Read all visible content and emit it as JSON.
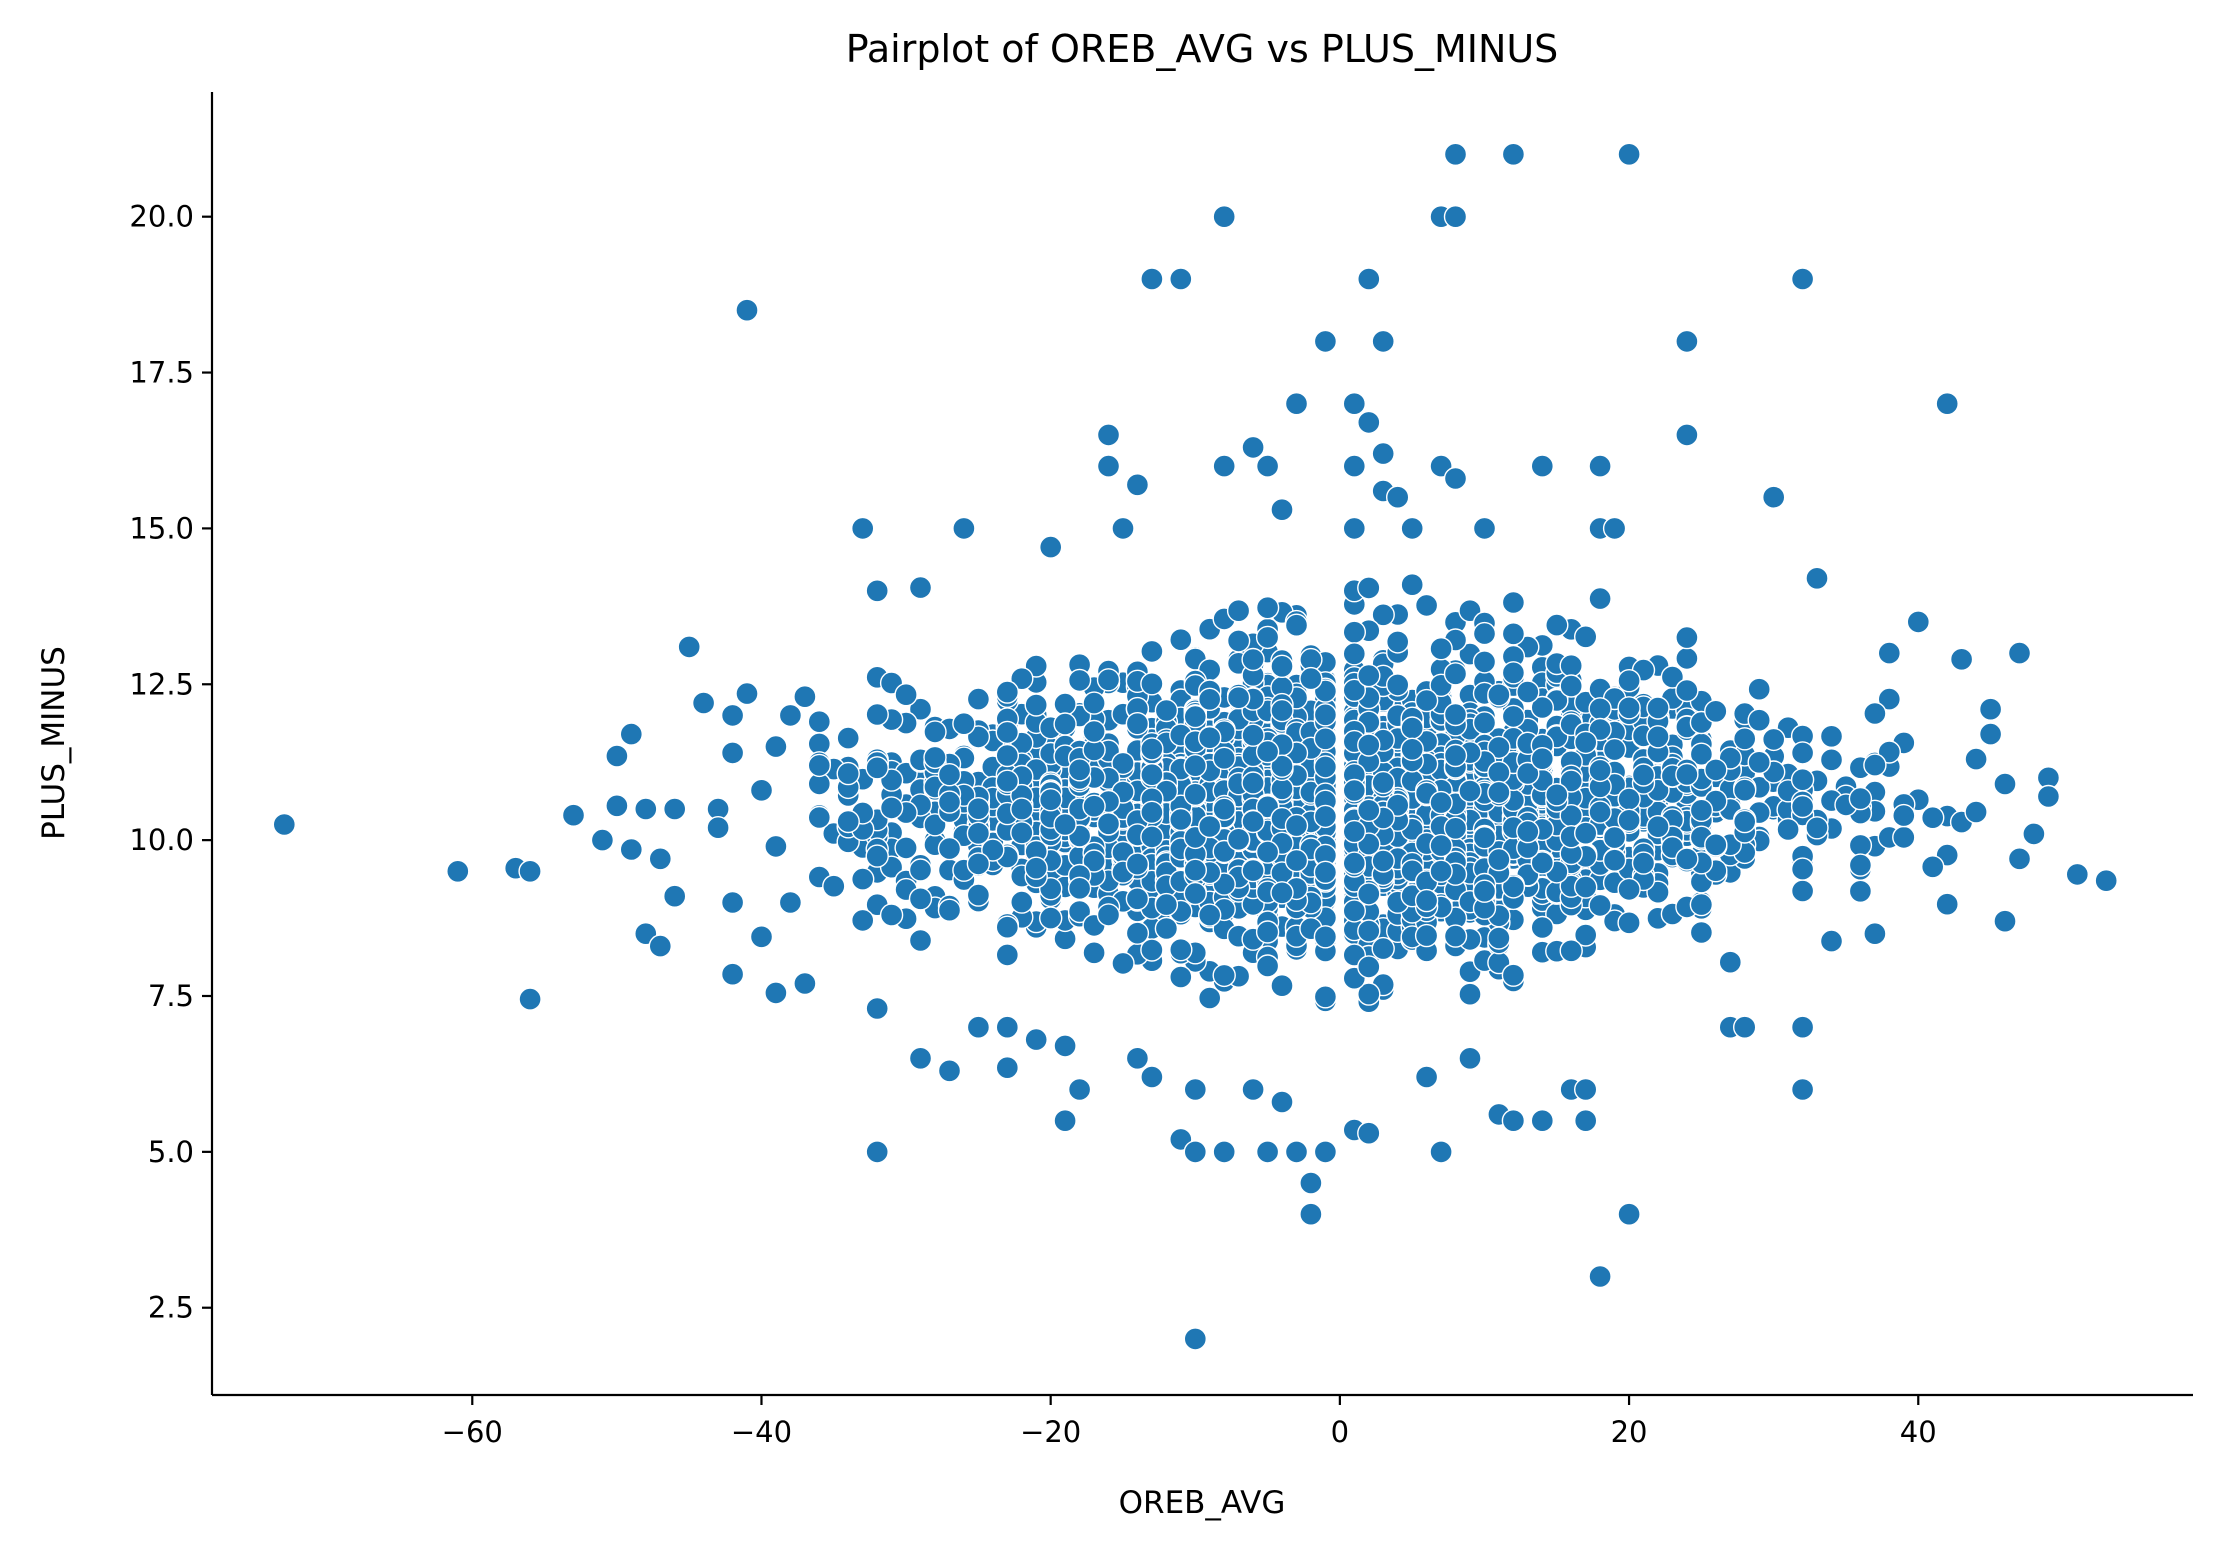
{
  "chart_data": {
    "type": "scatter",
    "title": "Pairplot of OREB_AVG vs PLUS_MINUS",
    "xlabel": "OREB_AVG",
    "ylabel": "PLUS_MINUS",
    "xlim": [
      -78,
      59
    ],
    "ylim": [
      1.1,
      22.0
    ],
    "xticks": [
      -60,
      -40,
      -20,
      0,
      20,
      40
    ],
    "xtick_labels": [
      "−60",
      "−40",
      "−20",
      "0",
      "20",
      "40"
    ],
    "yticks": [
      2.5,
      5.0,
      7.5,
      10.0,
      12.5,
      15.0,
      17.5,
      20.0
    ],
    "ytick_labels": [
      "2.5",
      "5.0",
      "7.5",
      "10.0",
      "12.5",
      "15.0",
      "17.5",
      "20.0"
    ],
    "grid": false,
    "marker_color": "#1f77b4",
    "series": [
      {
        "points": [
          [
            -73,
            10.25
          ],
          [
            -61,
            9.5
          ],
          [
            -57,
            9.55
          ],
          [
            -56,
            9.5
          ],
          [
            -56,
            7.45
          ],
          [
            -53,
            10.4
          ],
          [
            -51,
            10.0
          ],
          [
            -50,
            11.35
          ],
          [
            -50,
            10.55
          ],
          [
            -49,
            11.7
          ],
          [
            -49,
            9.85
          ],
          [
            -48,
            10.5
          ],
          [
            -48,
            8.5
          ],
          [
            -47,
            9.7
          ],
          [
            -47,
            8.3
          ],
          [
            -46,
            10.5
          ],
          [
            -46,
            9.1
          ],
          [
            -45,
            13.1
          ],
          [
            -44,
            12.2
          ],
          [
            -43,
            10.5
          ],
          [
            -43,
            10.2
          ],
          [
            -42,
            12.0
          ],
          [
            -42,
            11.4
          ],
          [
            -42,
            9.0
          ],
          [
            -42,
            7.85
          ],
          [
            -41,
            18.5
          ],
          [
            -41,
            12.35
          ],
          [
            -40,
            10.8
          ],
          [
            -40,
            8.45
          ],
          [
            -39,
            11.5
          ],
          [
            -39,
            9.9
          ],
          [
            -39,
            7.55
          ],
          [
            -38,
            12.0
          ],
          [
            -38,
            9.0
          ],
          [
            -37,
            12.3
          ],
          [
            -37,
            7.7
          ],
          [
            -36,
            11.9
          ],
          [
            -33,
            15.0
          ],
          [
            -32,
            14.0
          ],
          [
            -32,
            7.3
          ],
          [
            -32,
            5.0
          ],
          [
            -29,
            14.05
          ],
          [
            -29,
            6.5
          ],
          [
            -27,
            6.3
          ],
          [
            -26,
            15.0
          ],
          [
            -25,
            7.0
          ],
          [
            -23,
            7.0
          ],
          [
            -23,
            6.35
          ],
          [
            -21,
            6.8
          ],
          [
            -20,
            14.7
          ],
          [
            -19,
            6.7
          ],
          [
            -19,
            5.5
          ],
          [
            -18,
            6.0
          ],
          [
            -16,
            16.5
          ],
          [
            -16,
            16.0
          ],
          [
            -15,
            15.0
          ],
          [
            -14,
            15.7
          ],
          [
            -14,
            6.5
          ],
          [
            -13,
            19.0
          ],
          [
            -13,
            6.2
          ],
          [
            -11,
            19.0
          ],
          [
            -11,
            5.2
          ],
          [
            -10,
            6.0
          ],
          [
            -10,
            5.0
          ],
          [
            -10,
            2.0
          ],
          [
            -8,
            20.0
          ],
          [
            -8,
            16.0
          ],
          [
            -8,
            5.0
          ],
          [
            -6,
            16.3
          ],
          [
            -6,
            6.0
          ],
          [
            -5,
            16.0
          ],
          [
            -5,
            5.0
          ],
          [
            -4,
            15.3
          ],
          [
            -4,
            5.8
          ],
          [
            -3,
            17.0
          ],
          [
            -3,
            5.0
          ],
          [
            -2,
            4.5
          ],
          [
            -2,
            4.0
          ],
          [
            -1,
            18.0
          ],
          [
            -1,
            5.0
          ],
          [
            1,
            17.0
          ],
          [
            1,
            16.0
          ],
          [
            1,
            15.0
          ],
          [
            1,
            5.35
          ],
          [
            2,
            19.0
          ],
          [
            2,
            16.7
          ],
          [
            2,
            5.3
          ],
          [
            3,
            18.0
          ],
          [
            3,
            16.2
          ],
          [
            3,
            15.6
          ],
          [
            4,
            15.5
          ],
          [
            5,
            15.0
          ],
          [
            6,
            6.2
          ],
          [
            7,
            20.0
          ],
          [
            7,
            16.0
          ],
          [
            7,
            5.0
          ],
          [
            8,
            21.0
          ],
          [
            8,
            20.0
          ],
          [
            8,
            15.8
          ],
          [
            9,
            6.5
          ],
          [
            10,
            15.0
          ],
          [
            11,
            5.6
          ],
          [
            12,
            21.0
          ],
          [
            12,
            5.5
          ],
          [
            14,
            16.0
          ],
          [
            14,
            5.5
          ],
          [
            16,
            6.0
          ],
          [
            17,
            6.0
          ],
          [
            17,
            5.5
          ],
          [
            18,
            16.0
          ],
          [
            18,
            15.0
          ],
          [
            18,
            3.0
          ],
          [
            19,
            15.0
          ],
          [
            20,
            21.0
          ],
          [
            20,
            4.0
          ],
          [
            24,
            18.0
          ],
          [
            24,
            16.5
          ],
          [
            27,
            7.0
          ],
          [
            28,
            7.0
          ],
          [
            30,
            15.5
          ],
          [
            32,
            19.0
          ],
          [
            32,
            7.0
          ],
          [
            32,
            6.0
          ],
          [
            33,
            14.2
          ],
          [
            37,
            8.5
          ],
          [
            38,
            13.0
          ],
          [
            40,
            13.5
          ],
          [
            42,
            17.0
          ],
          [
            43,
            12.9
          ],
          [
            45,
            12.1
          ],
          [
            45,
            11.7
          ],
          [
            46,
            10.9
          ],
          [
            46,
            8.7
          ],
          [
            47,
            13.0
          ],
          [
            47,
            9.7
          ],
          [
            48,
            10.1
          ],
          [
            49,
            11.0
          ],
          [
            49,
            10.7
          ],
          [
            51,
            9.45
          ],
          [
            53,
            9.35
          ]
        ]
      }
    ]
  }
}
